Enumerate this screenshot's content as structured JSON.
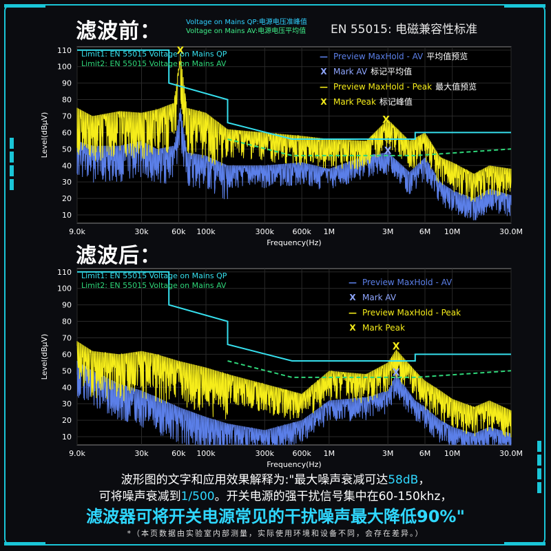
{
  "header": {
    "before_title": "滤波前：",
    "after_title": "滤波后：",
    "legend_qp": "Voltage on Mains QP:电源电压准峰值",
    "legend_av": "Voltage on Mains AV:电源电压平均值",
    "standard": "EN 55015:  电磁兼容性标准"
  },
  "colors": {
    "limit_qp": "#36e0ee",
    "limit_av": "#2fd77a",
    "av_trace": "#5b7fe8",
    "peak_trace": "#f5ec1a",
    "accent": "#1ac6d8"
  },
  "chart_data": [
    {
      "type": "line",
      "panel": "before",
      "title": "",
      "xlabel": "Frequency(Hz)",
      "ylabel": "Level(dBµV)",
      "x_scale": "log",
      "xlim": [
        9000,
        30000000
      ],
      "ylim": [
        5,
        112
      ],
      "x_ticks": [
        9000,
        30000,
        60000,
        100000,
        300000,
        600000,
        1000000,
        3000000,
        6000000,
        10000000,
        30000000
      ],
      "x_tick_labels": [
        "9.0k",
        "30k",
        "60k",
        "100k",
        "300k",
        "600k",
        "1M",
        "3M",
        "6M",
        "10M",
        "30.0M"
      ],
      "y_ticks": [
        10,
        20,
        30,
        40,
        50,
        60,
        70,
        80,
        90,
        100,
        110
      ],
      "limit_labels": [
        "Limit1: EN 55015 Voltage on Mains QP",
        "Limit2: EN 55015 Voltage on Mains AV"
      ],
      "legend": [
        {
          "mark": "—",
          "label": "Preview MaxHold - AV",
          "note": "平均值预览",
          "color": "#5b7fe8"
        },
        {
          "mark": "X",
          "label": "Mark AV",
          "note": "标记平均值",
          "color": "#8fa6ff"
        },
        {
          "mark": "—",
          "label": "Preview MaxHold - Peak",
          "note": "最大值预览",
          "color": "#f5ec1a"
        },
        {
          "mark": "X",
          "label": "Mark Peak",
          "note": "标记峰值",
          "color": "#f5ec1a"
        }
      ],
      "series": [
        {
          "name": "Limit1 QP",
          "x": [
            9000,
            50000,
            50000,
            150000,
            150000,
            500000,
            5000000,
            5000000,
            30000000
          ],
          "values": [
            110,
            110,
            90,
            80,
            66,
            56,
            56,
            60,
            60
          ]
        },
        {
          "name": "Limit2 AV",
          "x": [
            150000,
            500000,
            5000000,
            30000000
          ],
          "values": [
            56,
            46,
            46,
            50
          ]
        },
        {
          "name": "Preview MaxHold - Peak",
          "x": [
            9000,
            12000,
            20000,
            30000,
            40000,
            55000,
            62000,
            70000,
            100000,
            150000,
            300000,
            600000,
            1000000,
            2000000,
            3000000,
            4500000,
            6000000,
            8000000,
            10000000,
            15000000,
            20000000,
            30000000
          ],
          "values": [
            75,
            70,
            73,
            72,
            74,
            78,
            108,
            75,
            72,
            62,
            60,
            58,
            56,
            55,
            68,
            55,
            60,
            45,
            42,
            35,
            40,
            38
          ]
        },
        {
          "name": "Preview MaxHold - AV",
          "x": [
            9000,
            12000,
            20000,
            30000,
            40000,
            55000,
            62000,
            70000,
            100000,
            150000,
            300000,
            600000,
            1000000,
            2000000,
            3000000,
            4500000,
            6000000,
            8000000,
            10000000,
            15000000,
            20000000,
            30000000
          ],
          "values": [
            55,
            52,
            52,
            55,
            50,
            52,
            75,
            48,
            46,
            40,
            40,
            42,
            38,
            46,
            48,
            36,
            45,
            30,
            25,
            20,
            26,
            22
          ]
        }
      ],
      "markers": [
        {
          "name": "Mark Peak",
          "x": 62000,
          "y": 110
        },
        {
          "name": "Mark Peak",
          "x": 2900000,
          "y": 68
        },
        {
          "name": "Mark AV",
          "x": 3000000,
          "y": 49
        }
      ]
    },
    {
      "type": "line",
      "panel": "after",
      "title": "",
      "xlabel": "Frequency(Hz)",
      "ylabel": "Level(dBµV)",
      "x_scale": "log",
      "xlim": [
        9000,
        30000000
      ],
      "ylim": [
        5,
        112
      ],
      "x_ticks": [
        9000,
        30000,
        60000,
        100000,
        300000,
        600000,
        1000000,
        3000000,
        6000000,
        10000000,
        30000000
      ],
      "x_tick_labels": [
        "9.0k",
        "30k",
        "60k",
        "100k",
        "300k",
        "600k",
        "1M",
        "3M",
        "6M",
        "10M",
        "30.0M"
      ],
      "y_ticks": [
        10,
        20,
        30,
        40,
        50,
        60,
        70,
        80,
        90,
        100,
        110
      ],
      "limit_labels": [
        "Limit1: EN 55015 Voltage on Mains QP",
        "Limit2: EN 55015 Voltage on Mains AV"
      ],
      "legend": [
        {
          "mark": "—",
          "label": "Preview MaxHold - AV",
          "note": "",
          "color": "#5b7fe8"
        },
        {
          "mark": "X",
          "label": "Mark AV",
          "note": "",
          "color": "#8fa6ff"
        },
        {
          "mark": "—",
          "label": "Preview MaxHold - Peak",
          "note": "",
          "color": "#f5ec1a"
        },
        {
          "mark": "X",
          "label": "Mark Peak",
          "note": "",
          "color": "#f5ec1a"
        }
      ],
      "series": [
        {
          "name": "Limit1 QP",
          "x": [
            9000,
            50000,
            50000,
            150000,
            150000,
            500000,
            5000000,
            5000000,
            30000000
          ],
          "values": [
            110,
            110,
            90,
            80,
            66,
            56,
            56,
            60,
            60
          ]
        },
        {
          "name": "Limit2 AV",
          "x": [
            150000,
            500000,
            5000000,
            30000000
          ],
          "values": [
            56,
            46,
            46,
            50
          ]
        },
        {
          "name": "Preview MaxHold - Peak",
          "x": [
            9000,
            12000,
            20000,
            30000,
            40000,
            60000,
            100000,
            150000,
            300000,
            600000,
            1000000,
            2000000,
            3000000,
            3500000,
            5000000,
            6000000,
            8000000,
            10000000,
            15000000,
            20000000,
            30000000
          ],
          "values": [
            68,
            62,
            60,
            62,
            60,
            56,
            52,
            48,
            42,
            36,
            50,
            48,
            55,
            63,
            50,
            44,
            38,
            33,
            28,
            32,
            26
          ]
        },
        {
          "name": "Preview MaxHold - AV",
          "x": [
            9000,
            12000,
            20000,
            30000,
            40000,
            60000,
            100000,
            150000,
            300000,
            600000,
            1000000,
            2000000,
            3000000,
            3500000,
            5000000,
            6000000,
            8000000,
            10000000,
            15000000,
            20000000,
            30000000
          ],
          "values": [
            56,
            50,
            42,
            38,
            34,
            28,
            22,
            18,
            14,
            20,
            32,
            34,
            38,
            48,
            32,
            28,
            20,
            16,
            12,
            16,
            12
          ]
        }
      ],
      "markers": [
        {
          "name": "Mark Peak",
          "x": 3500000,
          "y": 65
        },
        {
          "name": "Mark AV",
          "x": 3500000,
          "y": 49
        }
      ]
    }
  ],
  "footer": {
    "line1_prefix": "波形图的文字和应用效果解释为:\"最大噪声衰减可达",
    "line1_value": "58dB",
    "line1_suffix": "，",
    "line2_prefix": "可将噪声衰减到",
    "line2_value": "1/500",
    "line2_suffix": "。开关电源的强干扰信号集中在60-150khz，",
    "line3": "滤波器可将开关电源常见的干扰噪声最大降低90%\"",
    "line4": "*（本页数据由实验室内部测量，实际使用环境和设备不同，会存在差异。）"
  }
}
